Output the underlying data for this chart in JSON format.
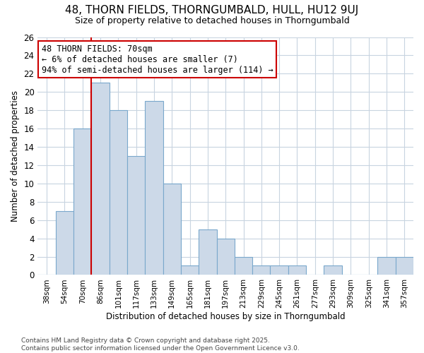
{
  "title1": "48, THORN FIELDS, THORNGUMBALD, HULL, HU12 9UJ",
  "title2": "Size of property relative to detached houses in Thorngumbald",
  "xlabel": "Distribution of detached houses by size in Thorngumbald",
  "ylabel": "Number of detached properties",
  "categories": [
    "38sqm",
    "54sqm",
    "70sqm",
    "86sqm",
    "101sqm",
    "117sqm",
    "133sqm",
    "149sqm",
    "165sqm",
    "181sqm",
    "197sqm",
    "213sqm",
    "229sqm",
    "245sqm",
    "261sqm",
    "277sqm",
    "293sqm",
    "309sqm",
    "325sqm",
    "341sqm",
    "357sqm"
  ],
  "values": [
    0,
    7,
    16,
    21,
    18,
    13,
    19,
    10,
    1,
    5,
    4,
    2,
    1,
    1,
    1,
    0,
    1,
    0,
    0,
    2,
    2
  ],
  "bar_color": "#ccd9e8",
  "bar_edge_color": "#7aa8cc",
  "vline_color": "#cc0000",
  "annotation_text": "48 THORN FIELDS: 70sqm\n← 6% of detached houses are smaller (7)\n94% of semi-detached houses are larger (114) →",
  "annotation_box_color": "#ffffff",
  "annotation_box_edge": "#cc0000",
  "ylim": [
    0,
    26
  ],
  "yticks": [
    0,
    2,
    4,
    6,
    8,
    10,
    12,
    14,
    16,
    18,
    20,
    22,
    24,
    26
  ],
  "background_color": "#ffffff",
  "grid_color": "#c8d4e0",
  "footer": "Contains HM Land Registry data © Crown copyright and database right 2025.\nContains public sector information licensed under the Open Government Licence v3.0."
}
